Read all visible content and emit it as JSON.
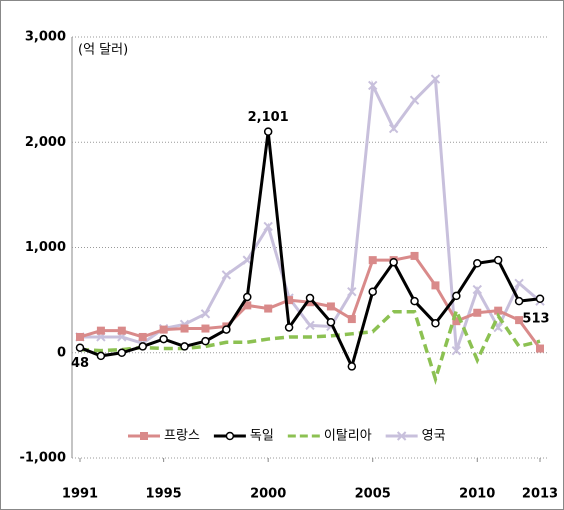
{
  "chart_data": {
    "type": "line",
    "unit_label": "(억 달러)",
    "x": [
      1991,
      1992,
      1993,
      1994,
      1995,
      1996,
      1997,
      1998,
      1999,
      2000,
      2001,
      2002,
      2003,
      2004,
      2005,
      2006,
      2007,
      2008,
      2009,
      2010,
      2011,
      2012,
      2013
    ],
    "xlim": [
      1991,
      2013
    ],
    "xticks": [
      1991,
      1995,
      2000,
      2005,
      2010,
      2013
    ],
    "ylim": [
      -1000,
      3000
    ],
    "yticks": [
      {
        "value": -1000,
        "label": "-1,000"
      },
      0,
      {
        "value": 1000,
        "label": "1,000"
      },
      {
        "value": 2000,
        "label": "2,000"
      },
      {
        "value": 3000,
        "label": "3,000"
      }
    ],
    "grid": true,
    "legend": "bottom",
    "series": [
      {
        "name": "프랑스",
        "color": "#d98a8a",
        "marker": "square",
        "dashed": false,
        "values": [
          150,
          210,
          210,
          150,
          220,
          230,
          230,
          250,
          450,
          420,
          500,
          480,
          440,
          320,
          880,
          880,
          920,
          640,
          300,
          380,
          400,
          310,
          40
        ]
      },
      {
        "name": "독일",
        "color": "#000000",
        "marker": "circle",
        "dashed": false,
        "values": [
          48,
          -30,
          0,
          60,
          130,
          60,
          110,
          220,
          530,
          2101,
          240,
          520,
          290,
          -130,
          580,
          860,
          490,
          280,
          540,
          850,
          880,
          490,
          513
        ],
        "value_labels": [
          "48",
          null,
          null,
          null,
          null,
          null,
          null,
          null,
          null,
          "2,101",
          null,
          null,
          null,
          null,
          null,
          null,
          null,
          null,
          null,
          null,
          null,
          null,
          "513"
        ]
      },
      {
        "name": "이탈리아",
        "color": "#8cc152",
        "marker": "none",
        "dashed": true,
        "values": [
          30,
          20,
          30,
          50,
          40,
          40,
          60,
          100,
          100,
          130,
          150,
          150,
          160,
          180,
          200,
          390,
          390,
          -250,
          400,
          -70,
          350,
          60,
          110
        ]
      },
      {
        "name": "영국",
        "color": "#c8c0dc",
        "marker": "x",
        "dashed": false,
        "values": [
          150,
          150,
          150,
          90,
          230,
          270,
          370,
          740,
          880,
          1200,
          520,
          260,
          250,
          580,
          2540,
          2130,
          2400,
          2600,
          20,
          600,
          240,
          660,
          490
        ]
      }
    ]
  }
}
